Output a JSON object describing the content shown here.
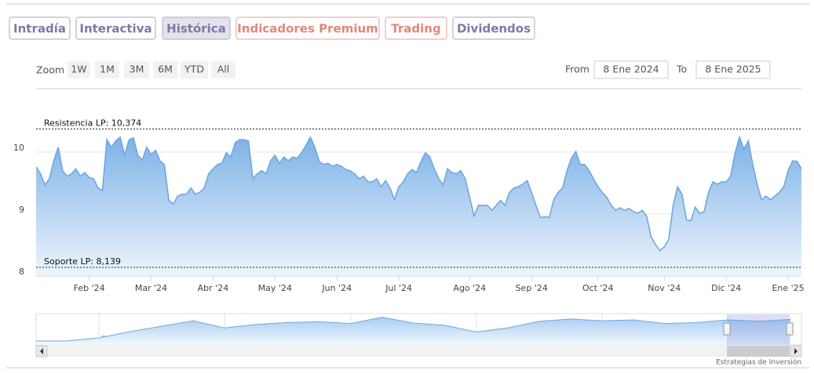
{
  "tabs": [
    "Intradía",
    "Interactiva",
    "Histórica",
    "Indicadores Premium",
    "Trading",
    "Dividendos"
  ],
  "zoom": {
    "label": "Zoom",
    "buttons": [
      "1W",
      "1M",
      "3M",
      "6M",
      "YTD",
      "All"
    ]
  },
  "range": {
    "from_label": "From",
    "from": "8 Ene 2024",
    "to_label": "To",
    "to": "8 Ene 2025"
  },
  "credit": "Estrategias de Inversión",
  "chart_data": [
    {
      "type": "area",
      "color": "#6fa8e0",
      "grid": true,
      "ylim": [
        8,
        11
      ],
      "yticks": [
        8,
        9,
        10
      ],
      "annotations": [
        {
          "label": "Resistencia LP: 10,374",
          "value": 10.374
        },
        {
          "label": "Soporte LP: 8,139",
          "value": 8.139
        }
      ],
      "categories": [
        null,
        null,
        null,
        null,
        null,
        null,
        null,
        null,
        null,
        null,
        null,
        null,
        "Feb '24",
        null,
        null,
        null,
        null,
        null,
        null,
        null,
        null,
        null,
        null,
        null,
        null,
        null,
        "Mar '24",
        null,
        null,
        null,
        null,
        null,
        null,
        null,
        null,
        null,
        null,
        null,
        null,
        null,
        "Abr '24",
        null,
        null,
        null,
        null,
        null,
        null,
        null,
        null,
        null,
        null,
        null,
        null,
        null,
        "May '24",
        null,
        null,
        null,
        null,
        null,
        null,
        null,
        null,
        null,
        null,
        null,
        null,
        null,
        "Jun '24",
        null,
        null,
        null,
        null,
        null,
        null,
        null,
        null,
        null,
        null,
        null,
        null,
        null,
        "Jul '24",
        null,
        null,
        null,
        null,
        null,
        null,
        null,
        null,
        null,
        null,
        null,
        null,
        null,
        null,
        null,
        "Ago '24",
        null,
        null,
        null,
        null,
        null,
        null,
        null,
        null,
        null,
        null,
        null,
        null,
        null,
        "Sep '24",
        null,
        null,
        null,
        null,
        null,
        null,
        null,
        null,
        null,
        null,
        null,
        null,
        null,
        null,
        "Oct '24",
        null,
        null,
        null,
        null,
        null,
        null,
        null,
        null,
        null,
        null,
        null,
        null,
        null,
        null,
        "Nov '24",
        null,
        null,
        null,
        null,
        null,
        null,
        null,
        null,
        null,
        null,
        null,
        null,
        null,
        "Dic '24",
        null,
        null,
        null,
        null,
        null,
        null,
        null,
        null,
        null,
        null,
        null,
        null,
        null,
        "Ene '25",
        null,
        null,
        null
      ],
      "values": [
        9.76,
        9.65,
        9.47,
        9.57,
        9.86,
        10.08,
        9.7,
        9.61,
        9.65,
        9.73,
        9.61,
        9.67,
        9.59,
        9.57,
        9.42,
        9.38,
        10.2,
        10.08,
        10.18,
        10.24,
        9.95,
        10.2,
        10.23,
        9.95,
        9.87,
        10.08,
        9.96,
        10.03,
        9.86,
        9.8,
        9.22,
        9.16,
        9.29,
        9.32,
        9.32,
        9.42,
        9.32,
        9.35,
        9.42,
        9.65,
        9.73,
        9.8,
        9.82,
        9.99,
        9.92,
        10.15,
        10.2,
        10.2,
        10.18,
        9.57,
        9.65,
        9.7,
        9.65,
        9.86,
        9.95,
        9.82,
        9.92,
        9.86,
        9.92,
        9.9,
        9.99,
        10.11,
        10.24,
        10.08,
        9.85,
        9.8,
        9.82,
        9.77,
        9.8,
        9.77,
        9.72,
        9.7,
        9.65,
        9.57,
        9.61,
        9.52,
        9.52,
        9.57,
        9.44,
        9.54,
        9.42,
        9.23,
        9.44,
        9.52,
        9.65,
        9.72,
        9.67,
        9.85,
        9.99,
        9.92,
        9.73,
        9.57,
        9.47,
        9.73,
        9.67,
        9.65,
        9.7,
        9.57,
        9.27,
        8.97,
        9.14,
        9.14,
        9.14,
        9.06,
        9.14,
        9.22,
        9.14,
        9.35,
        9.42,
        9.44,
        9.48,
        9.54,
        9.35,
        9.14,
        8.94,
        8.96,
        8.94,
        9.23,
        9.35,
        9.42,
        9.7,
        9.9,
        10.01,
        9.8,
        9.8,
        9.7,
        9.57,
        9.44,
        9.35,
        9.27,
        9.14,
        9.06,
        9.1,
        9.06,
        9.09,
        9.04,
        9.01,
        9.06,
        8.97,
        8.63,
        8.51,
        8.41,
        8.47,
        8.59,
        9.14,
        9.44,
        9.32,
        8.91,
        8.89,
        9.11,
        9.01,
        9.04,
        9.35,
        9.52,
        9.48,
        9.52,
        9.52,
        9.61,
        9.99,
        10.24,
        10.05,
        10.18,
        9.8,
        9.48,
        9.23,
        9.29,
        9.23,
        9.29,
        9.35,
        9.44,
        9.7,
        9.86,
        9.85,
        9.73
      ]
    },
    {
      "type": "navigator",
      "color": "#6fa8e0",
      "xlim": [
        2013,
        2025.17
      ],
      "ylim": [
        4,
        11
      ],
      "xticks": [
        2014,
        2016,
        2018,
        2020,
        2022,
        2024
      ],
      "x": [
        2013,
        2013.5,
        2014,
        2014.5,
        2015,
        2015.5,
        2016,
        2016.5,
        2017,
        2017.5,
        2018,
        2018.5,
        2019,
        2019.5,
        2020,
        2020.5,
        2021,
        2021.5,
        2022,
        2022.5,
        2023,
        2023.5,
        2024,
        2024.5,
        2025
      ],
      "values": [
        4.9,
        4.9,
        5.6,
        7.0,
        8.2,
        9.4,
        7.8,
        8.6,
        9.0,
        9.2,
        8.8,
        10.2,
        8.9,
        8.4,
        6.9,
        7.8,
        9.3,
        9.8,
        9.4,
        9.6,
        8.8,
        9.0,
        9.6,
        9.3,
        9.7
      ]
    }
  ]
}
